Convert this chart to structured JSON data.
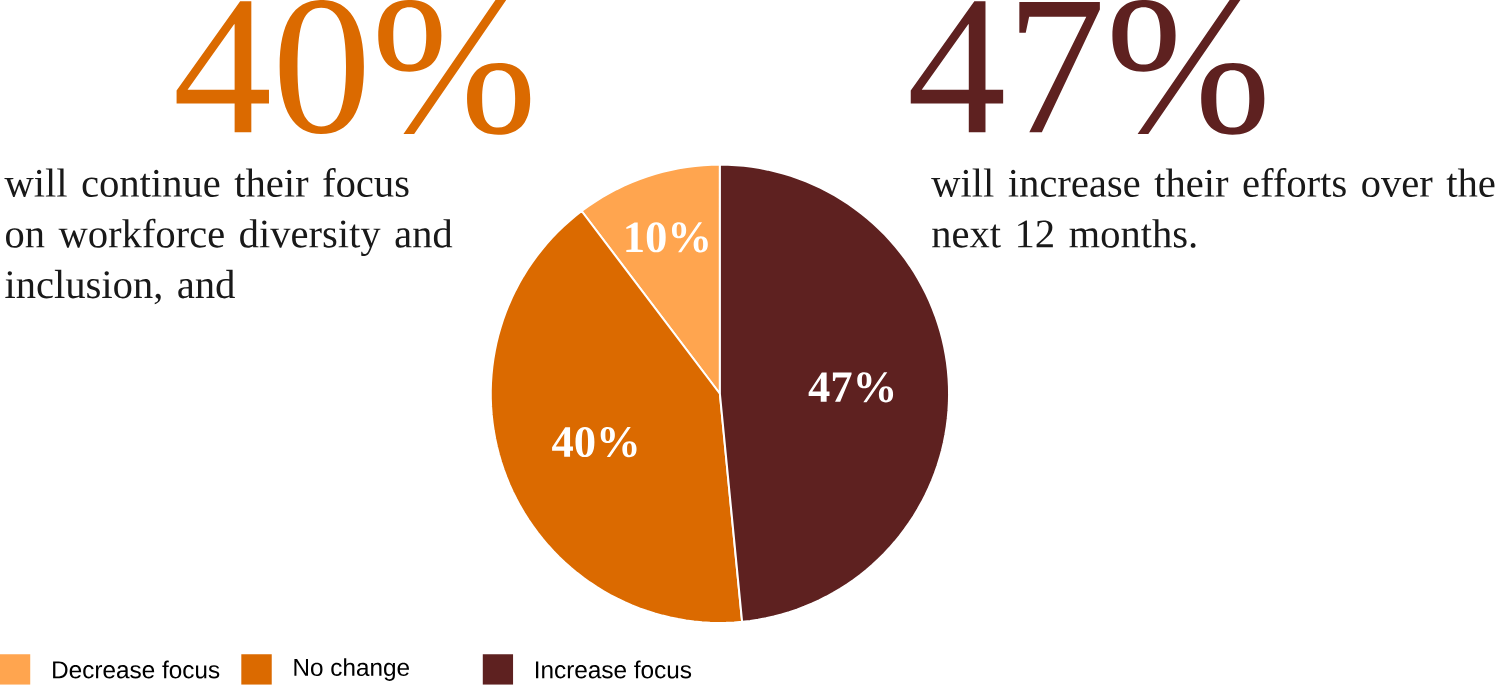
{
  "chart_data": {
    "type": "pie",
    "categories": [
      "Decrease focus",
      "No change",
      "Increase focus"
    ],
    "values": [
      10,
      40,
      47
    ],
    "colors": [
      "#ffa54f",
      "#db6a00",
      "#5e2120"
    ],
    "value_labels": [
      "10%",
      "40%",
      "47%"
    ],
    "legend": "bottom",
    "annotations": [
      "40%",
      "will continue their focus on workforce diversity and inclusion, and",
      "47%",
      "will increase their efforts over the next 12 months."
    ]
  }
}
